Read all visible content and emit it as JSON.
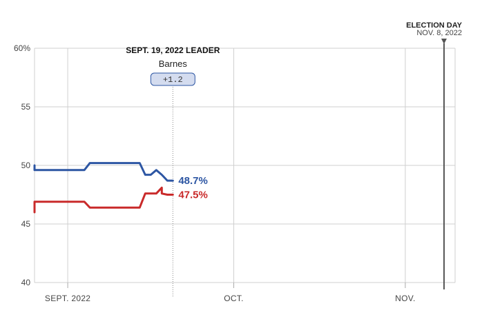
{
  "chart_data": {
    "type": "line",
    "x_domain": [
      "2022-08-26",
      "2022-11-10"
    ],
    "ylim": [
      40,
      60
    ],
    "y_ticks": [
      {
        "value": 60,
        "label": "60%"
      },
      {
        "value": 55,
        "label": "55"
      },
      {
        "value": 50,
        "label": "50"
      },
      {
        "value": 45,
        "label": "45"
      },
      {
        "value": 40,
        "label": "40"
      }
    ],
    "x_ticks": [
      {
        "date": "2022-09-01",
        "label": "SEPT. 2022"
      },
      {
        "date": "2022-10-01",
        "label": "OCT."
      },
      {
        "date": "2022-11-01",
        "label": "NOV."
      }
    ],
    "series": [
      {
        "color": "#2d56a3",
        "end_label": "48.7%",
        "points": [
          [
            "2022-08-26",
            50.0
          ],
          [
            "2022-08-26",
            49.6
          ],
          [
            "2022-08-31",
            49.6
          ],
          [
            "2022-09-02",
            49.6
          ],
          [
            "2022-09-04",
            49.6
          ],
          [
            "2022-09-04",
            49.6
          ],
          [
            "2022-09-05",
            50.2
          ],
          [
            "2022-09-07",
            50.2
          ],
          [
            "2022-09-09",
            50.2
          ],
          [
            "2022-09-11",
            50.2
          ],
          [
            "2022-09-13",
            50.2
          ],
          [
            "2022-09-14",
            50.2
          ],
          [
            "2022-09-15",
            49.2
          ],
          [
            "2022-09-16",
            49.2
          ],
          [
            "2022-09-16",
            49.2
          ],
          [
            "2022-09-17",
            49.6
          ],
          [
            "2022-09-18",
            49.2
          ],
          [
            "2022-09-19",
            48.7
          ],
          [
            "2022-09-20",
            48.7
          ]
        ]
      },
      {
        "color": "#c92a2a",
        "end_label": "47.5%",
        "points": [
          [
            "2022-08-26",
            46.0
          ],
          [
            "2022-08-26",
            46.9
          ],
          [
            "2022-08-31",
            46.9
          ],
          [
            "2022-09-03",
            46.9
          ],
          [
            "2022-09-04",
            46.9
          ],
          [
            "2022-09-05",
            46.4
          ],
          [
            "2022-09-07",
            46.4
          ],
          [
            "2022-09-09",
            46.4
          ],
          [
            "2022-09-11",
            46.4
          ],
          [
            "2022-09-14",
            46.4
          ],
          [
            "2022-09-14",
            46.4
          ],
          [
            "2022-09-15",
            47.6
          ],
          [
            "2022-09-16",
            47.6
          ],
          [
            "2022-09-17",
            47.6
          ],
          [
            "2022-09-18",
            48.1
          ],
          [
            "2022-09-18",
            47.6
          ],
          [
            "2022-09-19",
            47.5
          ],
          [
            "2022-09-20",
            47.5
          ]
        ]
      }
    ],
    "annotation": {
      "date": "2022-09-20",
      "title": "SEPT. 19, 2022 LEADER",
      "leader": "Barnes",
      "margin": "+1.2"
    },
    "election_day": {
      "date": "2022-11-08",
      "title": "ELECTION DAY",
      "label": "NOV. 8, 2022"
    },
    "grid": true
  }
}
